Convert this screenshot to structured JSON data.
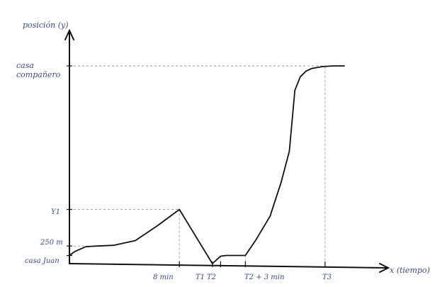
{
  "chart_data": {
    "type": "line",
    "title": "",
    "ylabel": "posición (y)",
    "xlabel": "x (tiempo)",
    "grid": false,
    "legend": "none",
    "x_ticks": [
      "8 min",
      "T1",
      "T2",
      "T2 + 3 min",
      "T3"
    ],
    "y_ticks": [
      "casa compañero",
      "Y1",
      "250 m",
      "casa Juan"
    ],
    "series": [
      {
        "x": [
          0,
          0.2,
          0.6,
          1.0,
          1.6,
          2.4,
          3.2,
          4.0,
          4.6,
          5.2,
          5.5,
          5.7,
          6.0,
          6.4,
          6.8,
          7.3,
          7.7,
          8.0,
          8.2,
          8.4,
          8.6,
          8.8,
          9.2,
          9.6,
          10.0
        ],
        "y": [
          0.6,
          0.9,
          1.25,
          1.3,
          1.35,
          1.7,
          2.8,
          4.0,
          2.0,
          0.0,
          0.55,
          0.6,
          0.6,
          0.6,
          1.8,
          3.5,
          6.0,
          8.3,
          12.8,
          13.8,
          14.2,
          14.4,
          14.55,
          14.6,
          14.6
        ],
        "color": "#111111"
      }
    ]
  }
}
